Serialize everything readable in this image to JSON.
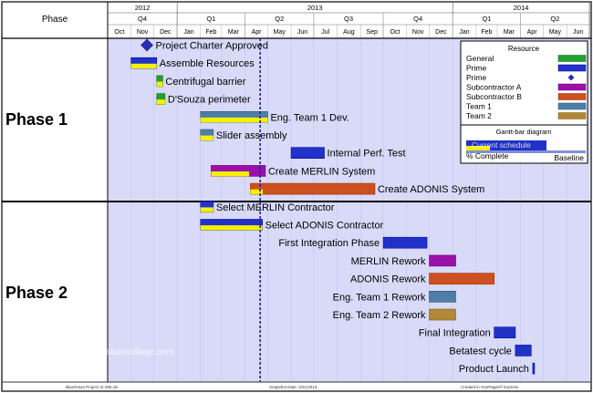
{
  "header": {
    "phase_label": "Phase",
    "years": [
      {
        "label": "2012",
        "from": "2012-10",
        "to": "2012-12"
      },
      {
        "label": "2013",
        "from": "2013-01",
        "to": "2013-12"
      },
      {
        "label": "2014",
        "from": "2014-01",
        "to": "2014-06"
      }
    ],
    "quarters": [
      {
        "label": "Q4",
        "from": "2012-10",
        "to": "2012-12"
      },
      {
        "label": "Q1",
        "from": "2013-01",
        "to": "2013-03"
      },
      {
        "label": "Q2",
        "from": "2013-04",
        "to": "2013-06"
      },
      {
        "label": "Q3",
        "from": "2013-07",
        "to": "2013-09"
      },
      {
        "label": "Q4",
        "from": "2013-10",
        "to": "2013-12"
      },
      {
        "label": "Q1",
        "from": "2014-01",
        "to": "2014-03"
      },
      {
        "label": "Q2",
        "from": "2014-04",
        "to": "2014-06"
      }
    ],
    "months": [
      "Oct",
      "Nov",
      "Dec",
      "Jan",
      "Feb",
      "Mar",
      "Apr",
      "May",
      "Jun",
      "Jul",
      "Aug",
      "Sep",
      "Oct",
      "Nov",
      "Dec",
      "Jan",
      "Feb",
      "Mar",
      "Apr",
      "May",
      "Jun"
    ]
  },
  "footer": {
    "left": "BlueGrass Project 2r-305.xls",
    "center": "Snapshot Date: 4/21/2013",
    "right": "Created in OnePager® Express"
  },
  "watermark": "www.heritagechristiancollage.com",
  "legend": {
    "title": "Resource",
    "items": [
      {
        "label": "General",
        "color": "#22a032",
        "kind": "bar"
      },
      {
        "label": "Prime",
        "color": "#2231c8",
        "kind": "bar"
      },
      {
        "label": "Prime",
        "color": "#2a2fb0",
        "kind": "diamond"
      },
      {
        "label": "Subcontractor A",
        "color": "#9a10a8",
        "kind": "bar"
      },
      {
        "label": "Subcontractor B",
        "color": "#cc5020",
        "kind": "bar"
      },
      {
        "label": "Team 1",
        "color": "#4e7ea6",
        "kind": "bar"
      },
      {
        "label": "Team 2",
        "color": "#b08838",
        "kind": "bar"
      }
    ],
    "gantt_title": "Gantt-bar diagram",
    "current_label": "Current schedule",
    "complete_label": "% Complete",
    "baseline_label": "Baseline"
  },
  "colors": {
    "chart_bg": "#d8daf8",
    "progress": "#f4f000",
    "baseline": "#8090d8",
    "snapshot": "#1a2aa0"
  },
  "chart_data": {
    "type": "gantt",
    "x_axis": "time",
    "x_range": [
      "2012-10-01",
      "2014-07-01"
    ],
    "snapshot_date": "2013-04-21",
    "phases": [
      {
        "label": "Phase 1",
        "rows": [
          0,
          8
        ]
      },
      {
        "label": "Phase 2",
        "rows": [
          9,
          18
        ]
      }
    ],
    "tasks": [
      {
        "label": "Project Charter Approved",
        "kind": "milestone",
        "start": "2012-11-22",
        "resource": "Prime",
        "complete": null,
        "label_side": "right"
      },
      {
        "label": "Assemble Resources",
        "kind": "bar",
        "start": "2012-11-01",
        "end": "2012-12-05",
        "resource": "Prime",
        "complete": 100,
        "label_side": "right"
      },
      {
        "label": "Centrifugal barrier",
        "kind": "bar",
        "start": "2012-12-05",
        "end": "2012-12-13",
        "resource": "General",
        "complete": 100,
        "label_side": "right"
      },
      {
        "label": "D'Souza perimeter",
        "kind": "bar",
        "start": "2012-12-05",
        "end": "2012-12-16",
        "resource": "General",
        "complete": 100,
        "label_side": "right"
      },
      {
        "label": "Eng. Team 1 Dev.",
        "kind": "bar",
        "start": "2013-02-01",
        "end": "2013-05-01",
        "resource": "Team 1",
        "complete": 100,
        "label_side": "right"
      },
      {
        "label": "Slider assembly",
        "kind": "bar",
        "start": "2013-02-01",
        "end": "2013-02-18",
        "resource": "Team 1",
        "complete": 100,
        "label_side": "right"
      },
      {
        "label": "Internal Perf. Test",
        "kind": "bar",
        "start": "2013-06-01",
        "end": "2013-07-15",
        "resource": "Prime",
        "complete": 0,
        "label_side": "right"
      },
      {
        "label": "Create MERLIN System",
        "kind": "bar",
        "start": "2013-02-15",
        "end": "2013-04-28",
        "resource": "Subcontractor A",
        "complete": 70,
        "label_side": "right"
      },
      {
        "label": "Create ADONIS System",
        "kind": "bar",
        "start": "2013-04-08",
        "end": "2013-09-20",
        "resource": "Subcontractor B",
        "complete": 10,
        "label_side": "right"
      },
      {
        "label": "Select MERLIN Contractor",
        "kind": "bar",
        "start": "2013-02-01",
        "end": "2013-02-18",
        "resource": "Prime",
        "complete": 100,
        "label_side": "right"
      },
      {
        "label": "Select ADONIS Contractor",
        "kind": "bar",
        "start": "2013-02-01",
        "end": "2013-04-24",
        "resource": "Prime",
        "complete": 100,
        "label_side": "right"
      },
      {
        "label": "First Integration Phase",
        "kind": "bar",
        "start": "2013-10-01",
        "end": "2013-11-28",
        "resource": "Prime",
        "complete": 0,
        "label_side": "left"
      },
      {
        "label": "MERLIN Rework",
        "kind": "bar",
        "start": "2013-12-01",
        "end": "2014-01-05",
        "resource": "Subcontractor A",
        "complete": 0,
        "label_side": "left"
      },
      {
        "label": "ADONIS Rework",
        "kind": "bar",
        "start": "2013-12-01",
        "end": "2014-02-25",
        "resource": "Subcontractor B",
        "complete": 0,
        "label_side": "left"
      },
      {
        "label": "Eng. Team 1 Rework",
        "kind": "bar",
        "start": "2013-12-01",
        "end": "2014-01-05",
        "resource": "Team 1",
        "complete": 0,
        "label_side": "left"
      },
      {
        "label": "Eng. Team 2 Rework",
        "kind": "bar",
        "start": "2013-12-01",
        "end": "2014-01-05",
        "resource": "Team 2",
        "complete": 0,
        "label_side": "left"
      },
      {
        "label": "Final Integration",
        "kind": "bar",
        "start": "2014-02-25",
        "end": "2014-03-25",
        "resource": "Prime",
        "complete": 0,
        "label_side": "left"
      },
      {
        "label": "Betatest cycle",
        "kind": "bar",
        "start": "2014-03-25",
        "end": "2014-04-15",
        "resource": "Prime",
        "complete": 0,
        "label_side": "left"
      },
      {
        "label": "Product Launch",
        "kind": "bar",
        "start": "2014-04-17",
        "end": "2014-04-19",
        "resource": "Prime",
        "complete": 0,
        "label_side": "left"
      }
    ]
  }
}
